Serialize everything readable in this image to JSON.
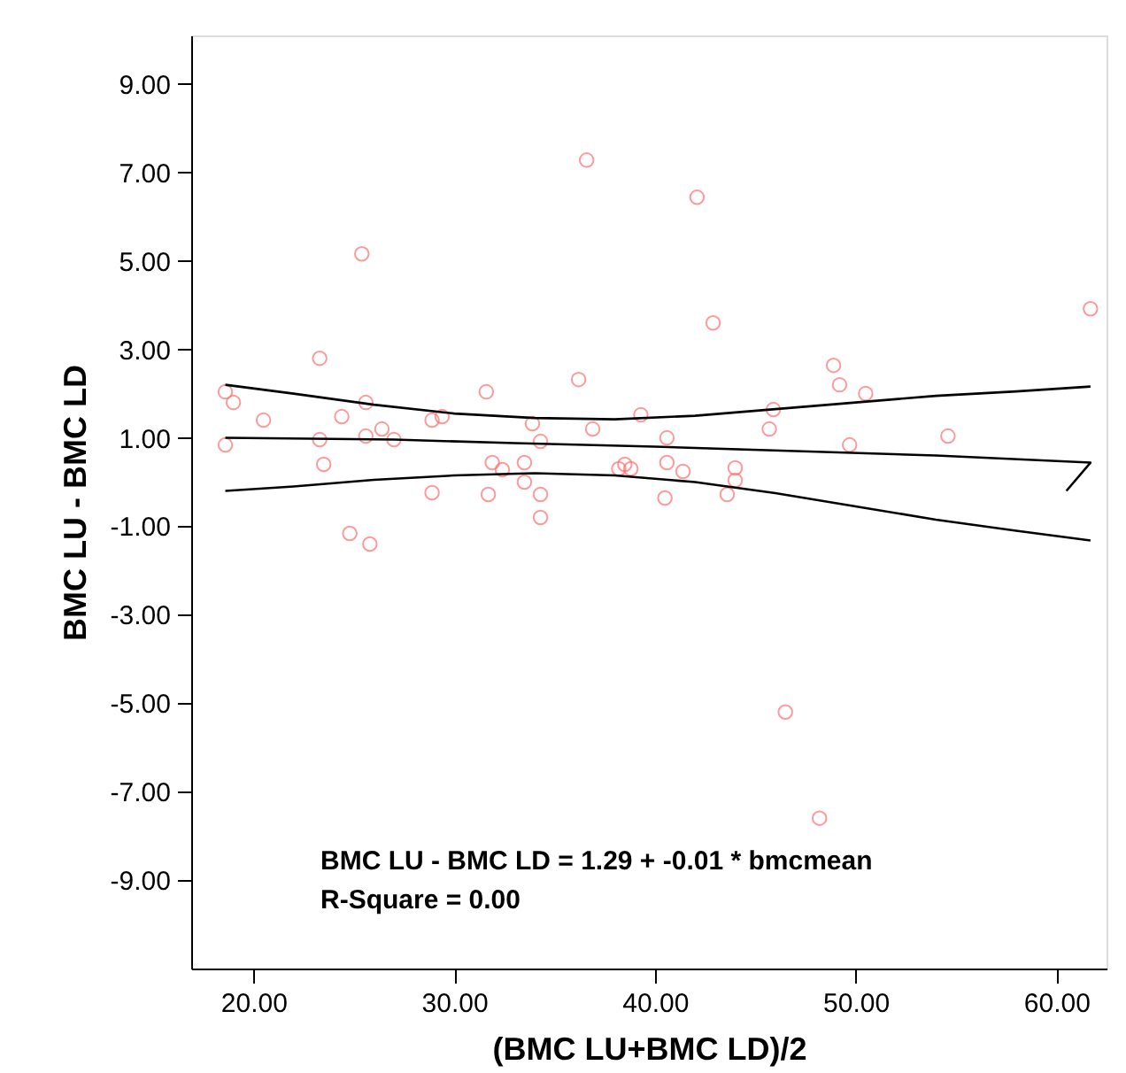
{
  "chart_data": {
    "type": "scatter",
    "xlabel": "(BMC LU+BMC LD)/2",
    "ylabel": "BMC LU - BMC LD",
    "xlim": [
      16.9,
      62.5
    ],
    "ylim": [
      -11.0,
      10.1
    ],
    "xticks": [
      {
        "value": 20,
        "label": "20.00"
      },
      {
        "value": 30,
        "label": "30.00"
      },
      {
        "value": 40,
        "label": "40.00"
      },
      {
        "value": 50,
        "label": "50.00"
      },
      {
        "value": 60,
        "label": "60.00"
      }
    ],
    "yticks": [
      {
        "value": -9,
        "label": "-9.00"
      },
      {
        "value": -7,
        "label": "-7.00"
      },
      {
        "value": -5,
        "label": "-5.00"
      },
      {
        "value": -3,
        "label": "-3.00"
      },
      {
        "value": -1,
        "label": "-1.00"
      },
      {
        "value": 1,
        "label": "1.00"
      },
      {
        "value": 3,
        "label": "3.00"
      },
      {
        "value": 5,
        "label": "5.00"
      },
      {
        "value": 7,
        "label": "7.00"
      },
      {
        "value": 9,
        "label": "9.00"
      }
    ],
    "grid": false,
    "legend": false,
    "marker": "circle",
    "series": [
      {
        "type": "scatter",
        "color": "#ff6f6f",
        "x": [
          18.6,
          19.0,
          18.6,
          20.5,
          23.3,
          23.3,
          23.5,
          24.4,
          24.8,
          25.4,
          25.6,
          25.6,
          25.8,
          26.4,
          27.0,
          28.9,
          28.9,
          29.4,
          31.6,
          31.9,
          32.4,
          31.7,
          33.5,
          33.5,
          33.9,
          34.3,
          34.3,
          34.3,
          36.2,
          36.6,
          36.9,
          38.2,
          38.5,
          38.8,
          39.3,
          42.1,
          42.9,
          40.6,
          40.6,
          40.5,
          41.4,
          44.0,
          44.0,
          43.6,
          45.9,
          45.7,
          48.9,
          49.2,
          50.5,
          49.7,
          54.6,
          61.7,
          46.5,
          48.2
        ],
        "values": [
          2.04,
          1.8,
          0.84,
          1.4,
          2.8,
          0.96,
          0.4,
          1.48,
          -1.16,
          5.16,
          1.8,
          1.04,
          -1.4,
          1.2,
          0.96,
          -0.24,
          1.4,
          1.48,
          2.04,
          0.44,
          0.28,
          -0.28,
          0.0,
          0.44,
          1.32,
          0.92,
          -0.28,
          -0.8,
          2.32,
          7.28,
          1.2,
          0.3,
          0.4,
          0.3,
          1.52,
          6.44,
          3.6,
          1.0,
          0.44,
          -0.36,
          0.24,
          0.32,
          0.04,
          -0.28,
          1.64,
          1.2,
          2.64,
          2.2,
          2.0,
          0.84,
          1.04,
          3.92,
          -5.2,
          -7.6
        ]
      },
      {
        "type": "line",
        "color": "#000000",
        "marker": "none",
        "line_style": "solid",
        "x": [
          18.6,
          22,
          26,
          30,
          34,
          38,
          42,
          46,
          50,
          54,
          58,
          61.7
        ],
        "values": [
          2.2,
          2.0,
          1.75,
          1.55,
          1.45,
          1.42,
          1.5,
          1.65,
          1.8,
          1.95,
          2.05,
          2.16
        ]
      },
      {
        "type": "line",
        "color": "#000000",
        "marker": "none",
        "line_style": "solid",
        "x": [
          18.6,
          27,
          33,
          40,
          47,
          54,
          61.7,
          60.5
        ],
        "values": [
          1.0,
          0.96,
          0.88,
          0.8,
          0.7,
          0.6,
          0.44,
          -0.2
        ]
      },
      {
        "type": "line",
        "color": "#000000",
        "marker": "none",
        "line_style": "solid",
        "x": [
          18.6,
          22,
          26,
          30,
          34,
          38,
          42,
          46,
          50,
          54,
          58,
          61.7
        ],
        "values": [
          -0.2,
          -0.1,
          0.05,
          0.15,
          0.2,
          0.15,
          0.0,
          -0.25,
          -0.55,
          -0.85,
          -1.1,
          -1.32
        ]
      }
    ],
    "annotations": [
      "BMC LU - BMC LD = 1.29 + -0.01 * bmcmean",
      "R-Square = 0.00"
    ]
  }
}
